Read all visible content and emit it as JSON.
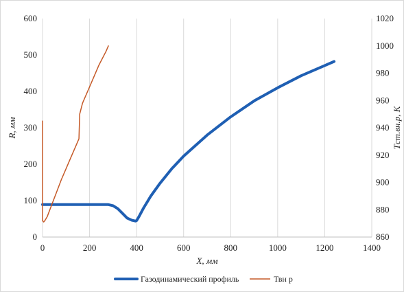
{
  "chart_data": {
    "type": "line",
    "x_axis": {
      "label": "X, мм",
      "range": [
        0,
        1400
      ],
      "ticks": [
        0,
        200,
        400,
        600,
        800,
        1000,
        1200,
        1400
      ]
    },
    "y_left": {
      "label": "R, мм",
      "range": [
        0,
        600
      ],
      "ticks": [
        0,
        100,
        200,
        300,
        400,
        500,
        600
      ]
    },
    "y_right": {
      "label": "Tст.вн.р, К",
      "range": [
        860,
        1020
      ],
      "ticks": [
        860,
        880,
        900,
        920,
        940,
        960,
        980,
        1000,
        1020
      ]
    },
    "grid": "vertical",
    "legend": "bottom",
    "series": [
      {
        "name": "Газодинамический профиль",
        "axis": "left",
        "color": "#1f5fb3",
        "x": [
          0,
          100,
          200,
          280,
          300,
          320,
          340,
          360,
          380,
          395,
          400,
          410,
          430,
          460,
          500,
          550,
          600,
          700,
          800,
          900,
          1000,
          1100,
          1200,
          1240
        ],
        "y": [
          89,
          89,
          89,
          89,
          86,
          78,
          65,
          52,
          46,
          44,
          45,
          56,
          80,
          112,
          148,
          188,
          222,
          280,
          330,
          374,
          410,
          443,
          471,
          482
        ]
      },
      {
        "name": "Твн р",
        "axis": "right",
        "color": "#c55a28",
        "x": [
          0,
          0,
          5,
          10,
          20,
          40,
          60,
          80,
          100,
          120,
          140,
          155,
          158,
          170,
          200,
          240,
          270,
          280
        ],
        "y": [
          945,
          872,
          871,
          872,
          875,
          884,
          893,
          902,
          910,
          918,
          926,
          932,
          950,
          958,
          970,
          986,
          996,
          1000
        ]
      }
    ]
  }
}
